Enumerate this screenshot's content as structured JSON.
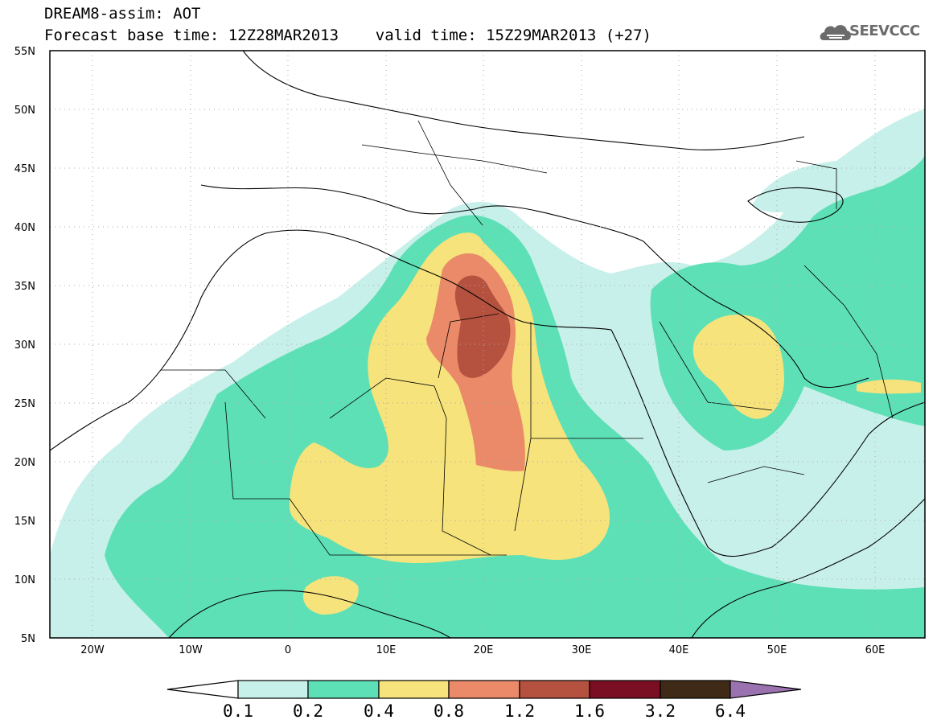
{
  "title": {
    "line1": "DREAM8-assim: AOT",
    "line2": "Forecast base time: 12Z28MAR2013    valid time: 15Z29MAR2013 (+27)"
  },
  "logo": {
    "text": "SEEVCCC",
    "icon": "cloud-icon"
  },
  "map": {
    "lat_ticks": [
      "55N",
      "50N",
      "45N",
      "40N",
      "35N",
      "30N",
      "25N",
      "20N",
      "15N",
      "10N",
      "5N"
    ],
    "lon_ticks": [
      "20W",
      "10W",
      "0",
      "10E",
      "20E",
      "30E",
      "40E",
      "50E",
      "60E"
    ]
  },
  "colorbar": {
    "labels": [
      "0.1",
      "0.2",
      "0.4",
      "0.8",
      "1.2",
      "1.6",
      "3.2",
      "6.4"
    ],
    "colors": [
      "#ffffff",
      "#c8f0ea",
      "#5ee0b6",
      "#f6e37c",
      "#ea8a68",
      "#b5523f",
      "#7a0f24",
      "#3f2a18",
      "#9b72b0"
    ]
  }
}
